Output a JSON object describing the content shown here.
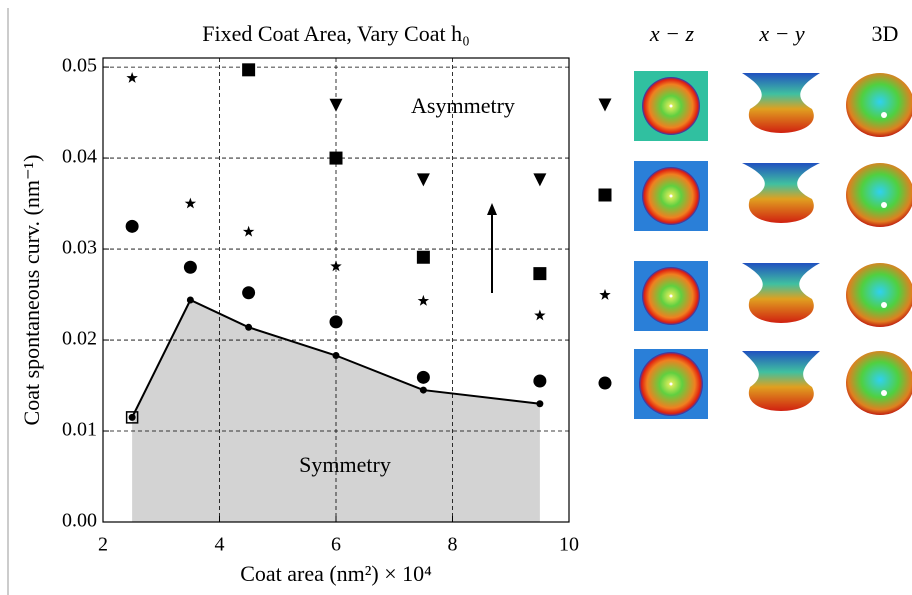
{
  "chart_data": {
    "type": "scatter",
    "title": "Fixed Coat Area, Vary Coat h₀",
    "xlabel": "Coat area (nm²) × 10⁴",
    "ylabel": "Coat spontaneous curv. (nm⁻¹)",
    "xlim": [
      2,
      10
    ],
    "ylim": [
      0,
      0.051
    ],
    "xticks": [
      2,
      4,
      6,
      8,
      10
    ],
    "yticks": [
      {
        "value": 0,
        "label": "0.00"
      },
      0.01,
      0.02,
      0.03,
      0.04,
      0.05
    ],
    "grid": true,
    "boundary": {
      "x": [
        2.5,
        3.5,
        4.5,
        6,
        7.5,
        9.5
      ],
      "values": [
        0.0115,
        0.0244,
        0.0214,
        0.0183,
        0.0145,
        0.013
      ],
      "color": "#000000",
      "fill": "#d3d3d3"
    },
    "series": [
      {
        "marker": "triangle",
        "color": "#000000",
        "x": [
          6,
          7.5,
          9.5
        ],
        "values": [
          0.0458,
          0.0376,
          0.0376
        ]
      },
      {
        "marker": "square",
        "color": "#000000",
        "x": [
          4.5,
          6,
          7.5,
          9.5
        ],
        "values": [
          0.0497,
          0.04,
          0.0291,
          0.0273
        ]
      },
      {
        "marker": "square-open",
        "color": "#000000",
        "x": [
          2.5
        ],
        "values": [
          0.0115
        ]
      },
      {
        "marker": "star",
        "color": "#000000",
        "x": [
          2.5,
          3.5,
          4.5,
          6,
          7.5,
          9.5
        ],
        "values": [
          0.0488,
          0.035,
          0.0319,
          0.0281,
          0.0243,
          0.0227
        ]
      },
      {
        "marker": "circle",
        "color": "#000000",
        "x": [
          2.5,
          3.5,
          4.5,
          6,
          7.5,
          9.5
        ],
        "values": [
          0.0325,
          0.028,
          0.0252,
          0.022,
          0.0159,
          0.0155
        ]
      }
    ],
    "annotations": [
      "Asymmetry",
      "Symmetry"
    ]
  },
  "panels": {
    "headers": [
      "x − z",
      "x − y",
      "3D"
    ]
  }
}
